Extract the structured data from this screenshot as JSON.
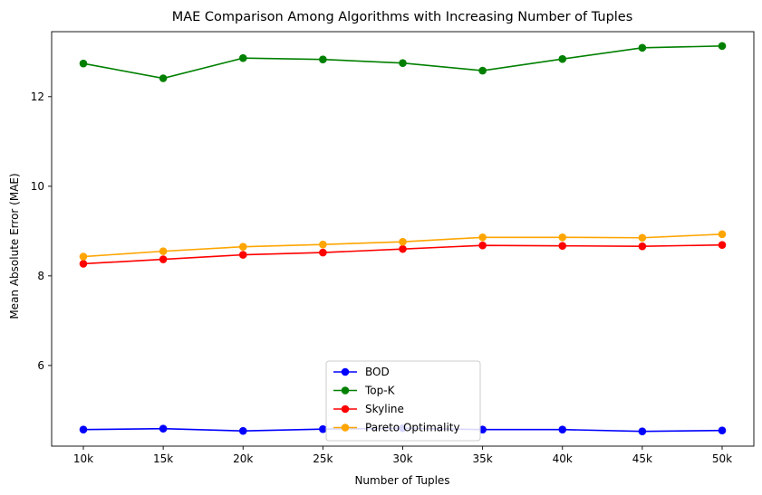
{
  "chart_data": {
    "type": "line",
    "title": "MAE Comparison Among Algorithms with Increasing Number of Tuples",
    "xlabel": "Number of Tuples",
    "ylabel": "Mean Absolute Error (MAE)",
    "categories": [
      "10k",
      "15k",
      "20k",
      "25k",
      "30k",
      "35k",
      "40k",
      "45k",
      "50k"
    ],
    "ylim": [
      4.2,
      13.45
    ],
    "yticks": [
      "6",
      "8",
      "10",
      "12"
    ],
    "grid": false,
    "legend_position": "bottom-center",
    "series": [
      {
        "name": "BOD",
        "color": "#0000ff",
        "values": [
          4.57,
          4.59,
          4.54,
          4.58,
          4.6,
          4.57,
          4.57,
          4.53,
          4.55
        ]
      },
      {
        "name": "Top-K",
        "color": "#008000",
        "values": [
          12.74,
          12.41,
          12.86,
          12.83,
          12.75,
          12.58,
          12.84,
          13.09,
          13.13
        ]
      },
      {
        "name": "Skyline",
        "color": "#ff0000",
        "values": [
          8.27,
          8.37,
          8.47,
          8.52,
          8.6,
          8.68,
          8.67,
          8.66,
          8.69
        ]
      },
      {
        "name": "Pareto Optimality",
        "color": "#ffa500",
        "values": [
          8.43,
          8.55,
          8.65,
          8.7,
          8.76,
          8.86,
          8.86,
          8.85,
          8.93
        ]
      }
    ]
  }
}
